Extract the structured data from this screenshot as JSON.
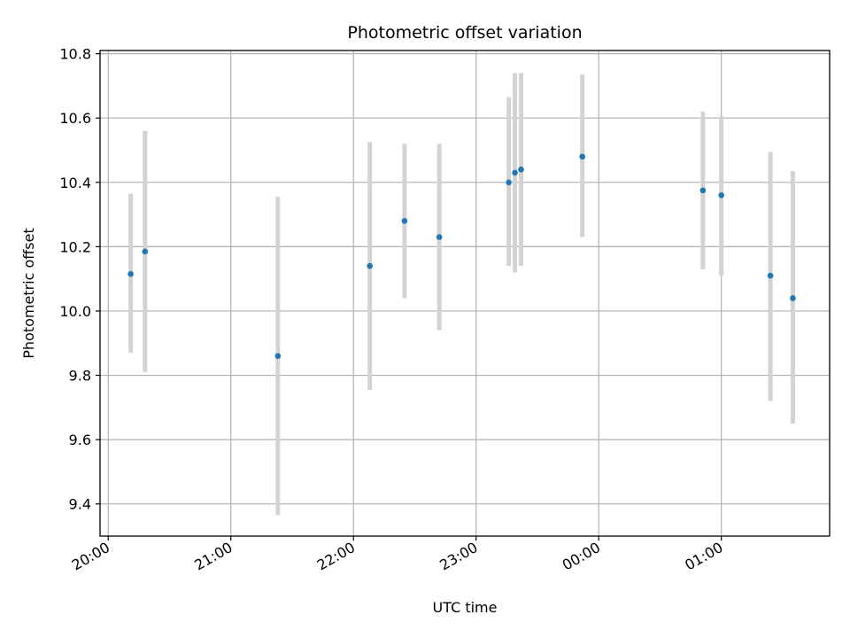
{
  "chart_data": {
    "type": "scatter",
    "title": "Photometric offset variation",
    "xlabel": "UTC time",
    "ylabel": "Photometric offset",
    "grid": true,
    "legend": "none",
    "x_ticks": [
      "20:00",
      "21:00",
      "22:00",
      "23:00",
      "00:00",
      "01:00"
    ],
    "y_ticks": [
      "9.4",
      "9.6",
      "9.8",
      "10.0",
      "10.2",
      "10.4",
      "10.6",
      "10.8"
    ],
    "xlim": [
      "19:56",
      "01:53"
    ],
    "ylim": [
      9.3,
      10.81
    ],
    "colors": {
      "point": "#1f77b4",
      "error_bar": "#d3d3d3",
      "grid": "#b0b0b0"
    },
    "points": [
      {
        "x": "20:11",
        "y": 10.115,
        "err_low": 9.87,
        "err_high": 10.365
      },
      {
        "x": "20:18",
        "y": 10.185,
        "err_low": 9.81,
        "err_high": 10.56
      },
      {
        "x": "21:23",
        "y": 9.86,
        "err_low": 9.365,
        "err_high": 10.355
      },
      {
        "x": "22:08",
        "y": 10.14,
        "err_low": 9.755,
        "err_high": 10.525
      },
      {
        "x": "22:25",
        "y": 10.28,
        "err_low": 10.04,
        "err_high": 10.52
      },
      {
        "x": "22:42",
        "y": 10.23,
        "err_low": 9.94,
        "err_high": 10.52
      },
      {
        "x": "23:16",
        "y": 10.4,
        "err_low": 10.14,
        "err_high": 10.665
      },
      {
        "x": "23:19",
        "y": 10.43,
        "err_low": 10.12,
        "err_high": 10.74
      },
      {
        "x": "23:22",
        "y": 10.44,
        "err_low": 10.14,
        "err_high": 10.74
      },
      {
        "x": "23:52",
        "y": 10.48,
        "err_low": 10.23,
        "err_high": 10.735
      },
      {
        "x": "00:51",
        "y": 10.375,
        "err_low": 10.13,
        "err_high": 10.62
      },
      {
        "x": "01:00",
        "y": 10.36,
        "err_low": 10.11,
        "err_high": 10.605
      },
      {
        "x": "01:24",
        "y": 10.11,
        "err_low": 9.72,
        "err_high": 10.495
      },
      {
        "x": "01:35",
        "y": 10.04,
        "err_low": 9.65,
        "err_high": 10.435
      }
    ]
  }
}
